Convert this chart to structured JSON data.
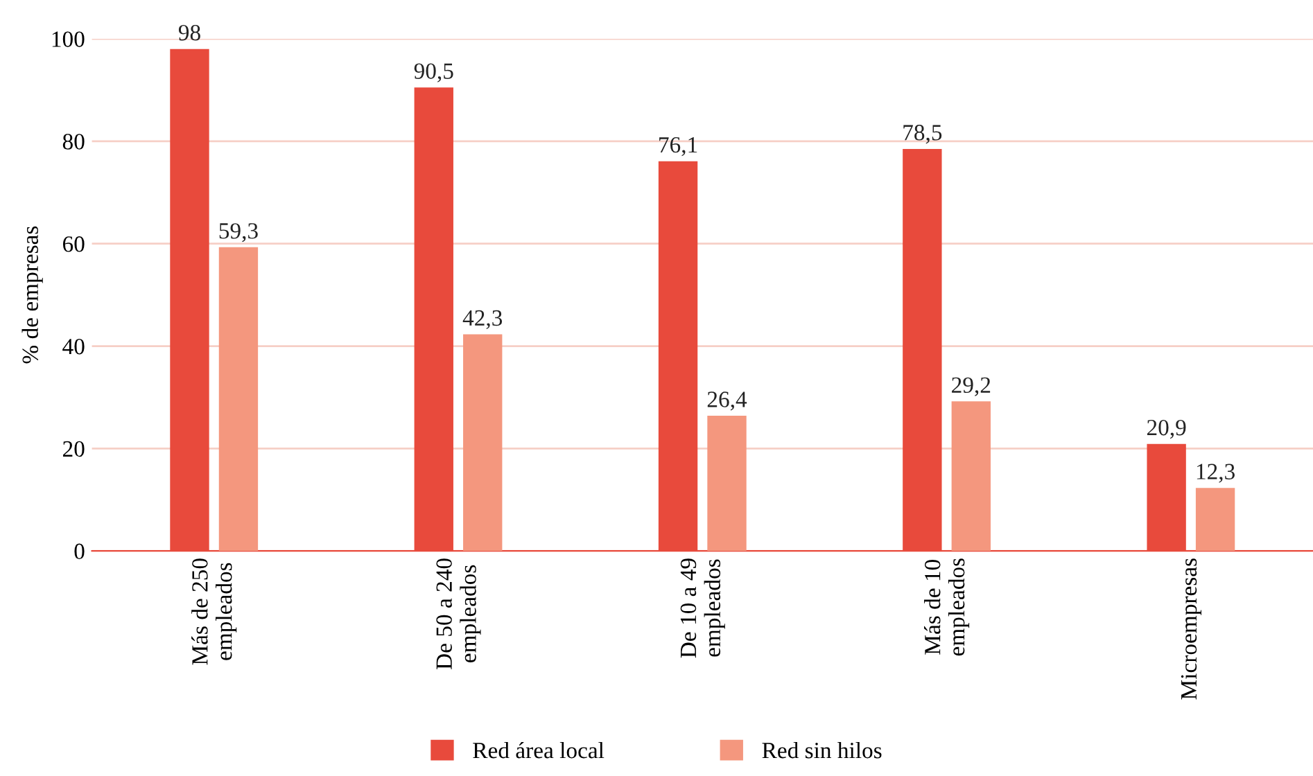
{
  "chart_data": {
    "type": "bar",
    "ylabel": "% de empresas",
    "categories": [
      "Más de 250\nempleados",
      "De 50 a 240\nempleados",
      "De 10 a 49\nempleados",
      "Más de 10\nempleados",
      "Microempresas"
    ],
    "series": [
      {
        "name": "Red área local",
        "color": "#e84a3c",
        "values": [
          98,
          90.5,
          76.1,
          78.5,
          20.9
        ],
        "value_labels": [
          "98",
          "90,5",
          "76,1",
          "78,5",
          "20,9"
        ]
      },
      {
        "name": "Red sin hilos",
        "color": "#f4977e",
        "values": [
          59.3,
          42.3,
          26.4,
          29.2,
          12.3
        ],
        "value_labels": [
          "59,3",
          "42,3",
          "26,4",
          "29,2",
          "12,3"
        ]
      }
    ],
    "ylim": [
      0,
      100
    ],
    "yticks": [
      0,
      20,
      40,
      60,
      80,
      100
    ],
    "grid": "y",
    "legend": "bottom"
  }
}
